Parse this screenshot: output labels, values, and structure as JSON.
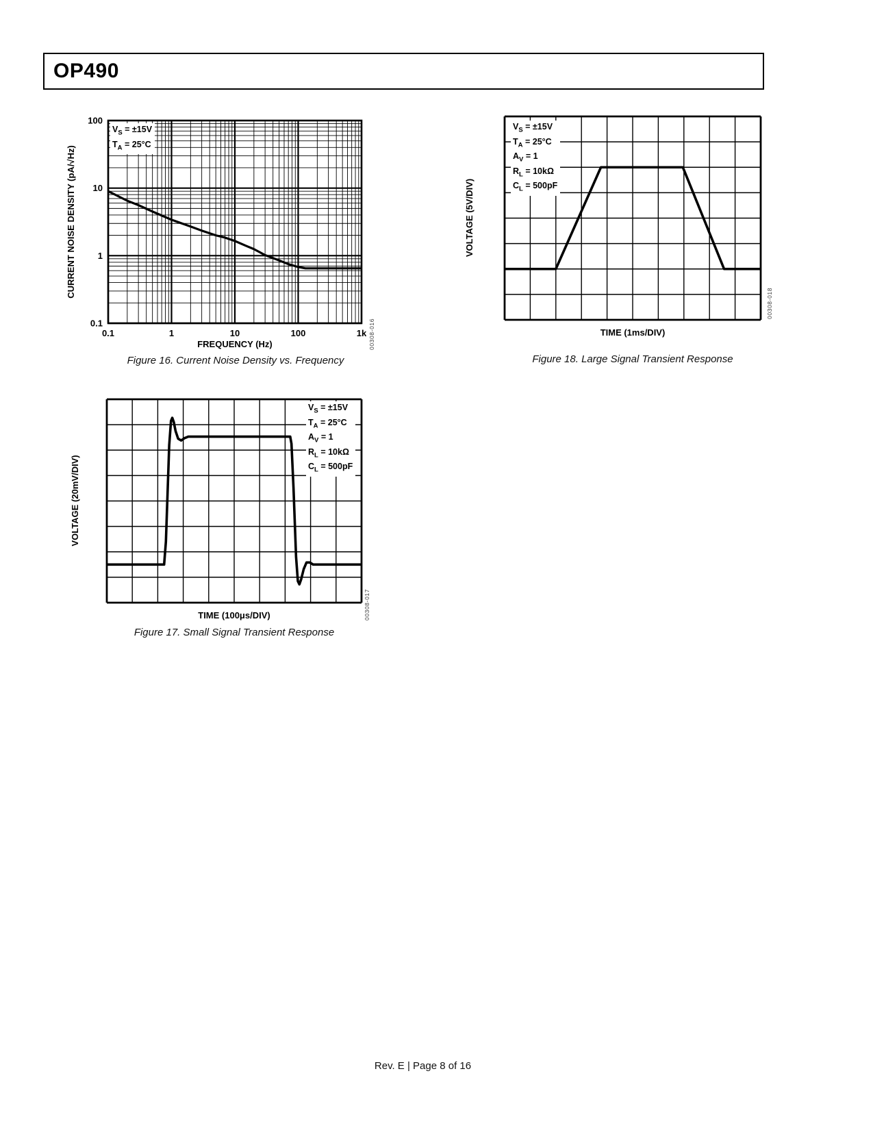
{
  "header": {
    "title": "OP490"
  },
  "footer": {
    "text": "Rev. E | Page 8 of 16"
  },
  "figures": {
    "fig16": {
      "caption": "Figure 16. Current Noise Density vs. Frequency",
      "code": "00308-016",
      "xlabel": "FREQUENCY (Hz)",
      "ylabel": "CURRENT NOISE DENSITY (pA/√Hz)",
      "conditions": [
        "V_S_ = ±15V",
        "T_A_ = 25°C"
      ]
    },
    "fig17": {
      "caption": "Figure 17. Small Signal Transient Response",
      "code": "00308-017",
      "xlabel": "TIME (100μs/DIV)",
      "ylabel": "VOLTAGE (20mV/DIV)",
      "conditions": [
        "V_S_ = ±15V",
        "T_A_ = 25°C",
        "A_V_ = 1",
        "R_L_ = 10kΩ",
        "C_L_ = 500pF"
      ]
    },
    "fig18": {
      "caption": "Figure 18. Large Signal Transient Response",
      "code": "00308-018",
      "xlabel": "TIME (1ms/DIV)",
      "ylabel": "VOLTAGE (5V/DIV)",
      "conditions": [
        "V_S_ = ±15V",
        "T_A_ = 25°C",
        "A_V_ = 1",
        "R_L_ = 10kΩ",
        "C_L_ = 500pF"
      ]
    }
  },
  "chart_data": [
    {
      "id": "fig16",
      "type": "line",
      "title": "Current Noise Density vs. Frequency",
      "xlabel": "FREQUENCY (Hz)",
      "ylabel": "CURRENT NOISE DENSITY (pA/√Hz)",
      "x_scale": "log",
      "y_scale": "log",
      "xlim": [
        0.1,
        1000
      ],
      "ylim": [
        0.1,
        100
      ],
      "x_ticks": [
        "0.1",
        "1",
        "10",
        "100",
        "1k"
      ],
      "y_ticks": [
        "100",
        "10",
        "1",
        "0.1"
      ],
      "grid": "log-log, minor gridlines 2–9 each decade",
      "annotations": [
        "VS = ±15V",
        "TA = 25°C"
      ],
      "series": [
        {
          "name": "current noise density (pA/√Hz) vs frequency (Hz)",
          "points": [
            [
              0.1,
              9
            ],
            [
              0.2,
              6.5
            ],
            [
              0.3,
              5.6
            ],
            [
              0.5,
              4.5
            ],
            [
              1,
              3.4
            ],
            [
              2,
              2.7
            ],
            [
              3,
              2.35
            ],
            [
              5,
              2.0
            ],
            [
              7,
              1.85
            ],
            [
              10,
              1.65
            ],
            [
              15,
              1.4
            ],
            [
              20,
              1.25
            ],
            [
              30,
              1.02
            ],
            [
              50,
              0.85
            ],
            [
              70,
              0.75
            ],
            [
              100,
              0.68
            ],
            [
              130,
              0.65
            ],
            [
              200,
              0.65
            ],
            [
              500,
              0.65
            ],
            [
              1000,
              0.65
            ]
          ]
        }
      ]
    },
    {
      "id": "fig17",
      "type": "line",
      "title": "Small Signal Transient Response",
      "xlabel": "TIME (100μs/DIV)",
      "ylabel": "VOLTAGE (20mV/DIV)",
      "x_divisions": 10,
      "y_divisions": 8,
      "grid": "oscilloscope graticule 10 x 8 divisions",
      "annotations": [
        "VS = ±15V",
        "TA = 25°C",
        "AV = 1",
        "RL = 10kΩ",
        "CL = 500pF"
      ],
      "series": [
        {
          "name": "output step response (x in divisions, y in divisions from bottom)",
          "points": [
            [
              0,
              1.5
            ],
            [
              2.25,
              1.5
            ],
            [
              2.32,
              2.4
            ],
            [
              2.45,
              6.2
            ],
            [
              2.52,
              7.15
            ],
            [
              2.57,
              7.27
            ],
            [
              2.63,
              7.1
            ],
            [
              2.7,
              6.75
            ],
            [
              2.8,
              6.45
            ],
            [
              2.92,
              6.38
            ],
            [
              3.05,
              6.47
            ],
            [
              3.2,
              6.53
            ],
            [
              7.2,
              6.53
            ],
            [
              7.25,
              6.25
            ],
            [
              7.33,
              4.5
            ],
            [
              7.43,
              1.8
            ],
            [
              7.5,
              0.85
            ],
            [
              7.56,
              0.72
            ],
            [
              7.63,
              0.92
            ],
            [
              7.73,
              1.32
            ],
            [
              7.84,
              1.58
            ],
            [
              7.97,
              1.58
            ],
            [
              8.1,
              1.5
            ],
            [
              10,
              1.5
            ]
          ]
        }
      ]
    },
    {
      "id": "fig18",
      "type": "line",
      "title": "Large Signal Transient Response",
      "xlabel": "TIME (1ms/DIV)",
      "ylabel": "VOLTAGE (5V/DIV)",
      "x_divisions": 10,
      "y_divisions": 8,
      "grid": "oscilloscope graticule 10 x 8 divisions",
      "annotations": [
        "VS = ±15V",
        "TA = 25°C",
        "AV = 1",
        "RL = 10kΩ",
        "CL = 500pF"
      ],
      "series": [
        {
          "name": "output trapezoid response (x in divisions, y in divisions from bottom)",
          "points": [
            [
              0,
              2
            ],
            [
              2.0,
              2
            ],
            [
              3.76,
              6
            ],
            [
              6.96,
              6
            ],
            [
              8.57,
              2
            ],
            [
              10,
              2
            ]
          ]
        }
      ]
    }
  ]
}
